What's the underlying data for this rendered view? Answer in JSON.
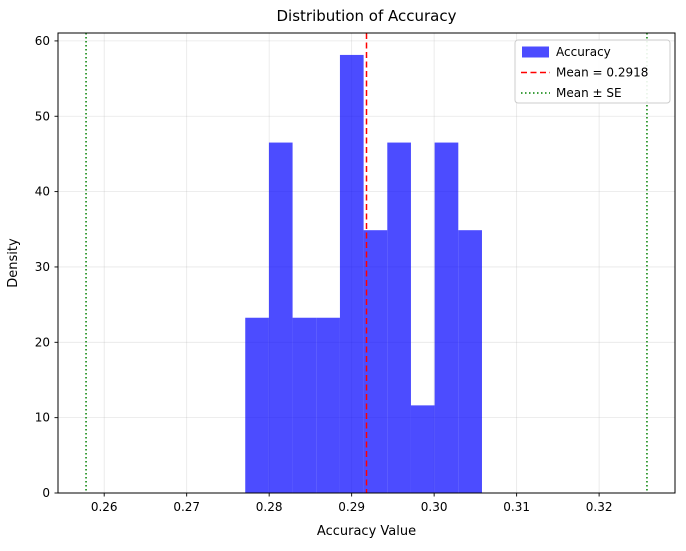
{
  "chart_data": {
    "type": "bar",
    "title": "Distribution of Accuracy",
    "xlabel": "Accuracy Value",
    "ylabel": "Density",
    "xlim": [
      0.2544,
      0.3292
    ],
    "ylim": [
      0,
      61.05
    ],
    "xticks": [
      0.26,
      0.27,
      0.28,
      0.29,
      0.3,
      0.31,
      0.32
    ],
    "xtick_labels": [
      "0.26",
      "0.27",
      "0.28",
      "0.29",
      "0.30",
      "0.31",
      "0.32"
    ],
    "yticks": [
      0,
      10,
      20,
      30,
      40,
      50,
      60
    ],
    "ytick_labels": [
      "0",
      "10",
      "20",
      "30",
      "40",
      "50",
      "60"
    ],
    "grid": true,
    "histogram": {
      "label": "Accuracy",
      "bin_start": 0.2771,
      "bin_width": 0.00287,
      "densities": [
        23.26,
        46.51,
        23.26,
        23.26,
        58.14,
        34.88,
        46.51,
        11.63,
        46.51,
        34.88
      ],
      "color": "#0000ff",
      "alpha": 0.7
    },
    "mean_line": {
      "value": 0.2918,
      "color": "#ff0000",
      "style": "dashed",
      "label": "Mean = 0.2918"
    },
    "se_lines": {
      "values": [
        0.2578,
        0.3258
      ],
      "se": 0.034,
      "color": "#008000",
      "style": "dotted",
      "label": "Mean ± SE"
    },
    "legend": {
      "position": "upper right",
      "entries": [
        {
          "label": "Accuracy",
          "type": "patch",
          "color": "#0000ff"
        },
        {
          "label": "Mean = 0.2918",
          "type": "dashed-line",
          "color": "#ff0000"
        },
        {
          "label": "Mean ± SE",
          "type": "dotted-line",
          "color": "#008000"
        }
      ]
    }
  }
}
